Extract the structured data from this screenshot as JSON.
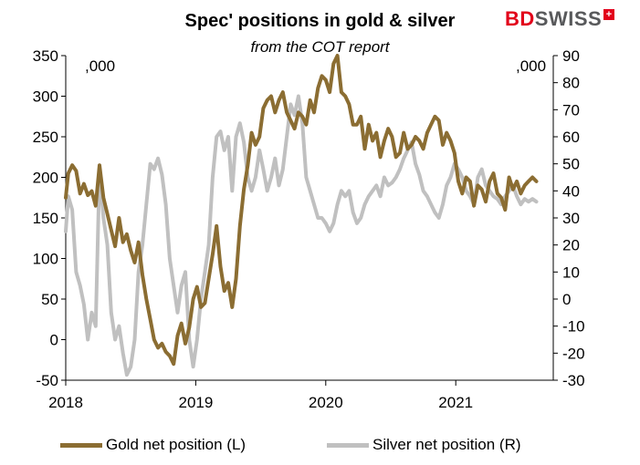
{
  "header": {
    "title": "Spec' positions in gold & silver",
    "subtitle": "from the COT report",
    "brand_bd": "BD",
    "brand_swiss": "SWISS",
    "brand_mark": "+"
  },
  "chart_data": {
    "type": "line",
    "title": "Spec' positions in gold & silver",
    "subtitle": "from the COT report",
    "left_axis_unit": ",000",
    "right_axis_unit": ",000",
    "ylim_left": [
      -50,
      350
    ],
    "ylim_right": [
      -30,
      90
    ],
    "yticks_left": [
      -50,
      0,
      50,
      100,
      150,
      200,
      250,
      300,
      350
    ],
    "yticks_right": [
      -30,
      -20,
      -10,
      0,
      10,
      20,
      30,
      40,
      50,
      60,
      70,
      80,
      90
    ],
    "xlim": [
      2018.0,
      2021.75
    ],
    "xticks": [
      2018,
      2019,
      2020,
      2021
    ],
    "xtick_labels": [
      "2018",
      "2019",
      "2020",
      "2021"
    ],
    "grid": false,
    "legend_position": "bottom",
    "series": [
      {
        "name": "Gold net position (L)",
        "axis": "left",
        "color": "#8b6d32",
        "x": [
          2018.0,
          2018.02,
          2018.05,
          2018.08,
          2018.11,
          2018.14,
          2018.17,
          2018.2,
          2018.23,
          2018.26,
          2018.29,
          2018.32,
          2018.35,
          2018.38,
          2018.41,
          2018.44,
          2018.47,
          2018.5,
          2018.53,
          2018.56,
          2018.59,
          2018.62,
          2018.65,
          2018.68,
          2018.71,
          2018.74,
          2018.77,
          2018.8,
          2018.83,
          2018.86,
          2018.89,
          2018.92,
          2018.95,
          2018.98,
          2019.01,
          2019.04,
          2019.07,
          2019.1,
          2019.13,
          2019.16,
          2019.19,
          2019.22,
          2019.25,
          2019.28,
          2019.31,
          2019.34,
          2019.37,
          2019.4,
          2019.43,
          2019.46,
          2019.49,
          2019.52,
          2019.55,
          2019.58,
          2019.61,
          2019.64,
          2019.67,
          2019.7,
          2019.73,
          2019.76,
          2019.79,
          2019.82,
          2019.85,
          2019.88,
          2019.91,
          2019.94,
          2019.97,
          2020.0,
          2020.03,
          2020.06,
          2020.09,
          2020.12,
          2020.15,
          2020.18,
          2020.21,
          2020.24,
          2020.27,
          2020.3,
          2020.33,
          2020.36,
          2020.39,
          2020.42,
          2020.45,
          2020.48,
          2020.51,
          2020.54,
          2020.57,
          2020.6,
          2020.63,
          2020.66,
          2020.69,
          2020.72,
          2020.75,
          2020.78,
          2020.81,
          2020.84,
          2020.87,
          2020.9,
          2020.93,
          2020.96,
          2020.99,
          2021.02,
          2021.05,
          2021.08,
          2021.11,
          2021.14,
          2021.17,
          2021.2,
          2021.23,
          2021.26,
          2021.29,
          2021.32,
          2021.35,
          2021.38,
          2021.41,
          2021.44,
          2021.47,
          2021.5,
          2021.53,
          2021.56,
          2021.59,
          2021.62
        ],
        "values": [
          175,
          205,
          215,
          208,
          180,
          192,
          178,
          183,
          165,
          215,
          175,
          155,
          135,
          115,
          150,
          120,
          130,
          110,
          95,
          120,
          80,
          50,
          25,
          0,
          -10,
          -5,
          -15,
          -20,
          -30,
          5,
          20,
          -5,
          15,
          50,
          65,
          40,
          45,
          75,
          105,
          140,
          90,
          60,
          70,
          40,
          75,
          140,
          185,
          215,
          255,
          240,
          250,
          285,
          295,
          300,
          280,
          295,
          305,
          280,
          270,
          260,
          280,
          275,
          265,
          295,
          280,
          310,
          325,
          320,
          305,
          340,
          350,
          305,
          300,
          290,
          265,
          265,
          275,
          235,
          265,
          245,
          255,
          225,
          245,
          260,
          250,
          225,
          230,
          255,
          235,
          240,
          250,
          245,
          235,
          255,
          265,
          275,
          270,
          240,
          255,
          245,
          230,
          195,
          180,
          200,
          195,
          165,
          190,
          185,
          170,
          195,
          205,
          180,
          175,
          160,
          200,
          185,
          195,
          180,
          190,
          195,
          200,
          195
        ]
      },
      {
        "name": "Silver net position (R)",
        "axis": "right",
        "color": "#c0c0c0",
        "x": [
          2018.0,
          2018.02,
          2018.05,
          2018.08,
          2018.11,
          2018.14,
          2018.17,
          2018.2,
          2018.23,
          2018.26,
          2018.29,
          2018.32,
          2018.35,
          2018.38,
          2018.41,
          2018.44,
          2018.47,
          2018.5,
          2018.53,
          2018.56,
          2018.59,
          2018.62,
          2018.65,
          2018.68,
          2018.71,
          2018.74,
          2018.77,
          2018.8,
          2018.83,
          2018.86,
          2018.89,
          2018.92,
          2018.95,
          2018.98,
          2019.01,
          2019.04,
          2019.07,
          2019.1,
          2019.13,
          2019.16,
          2019.19,
          2019.22,
          2019.25,
          2019.28,
          2019.31,
          2019.34,
          2019.37,
          2019.4,
          2019.43,
          2019.46,
          2019.49,
          2019.52,
          2019.55,
          2019.58,
          2019.61,
          2019.64,
          2019.67,
          2019.7,
          2019.73,
          2019.76,
          2019.79,
          2019.82,
          2019.85,
          2019.88,
          2019.91,
          2019.94,
          2019.97,
          2020.0,
          2020.03,
          2020.06,
          2020.09,
          2020.12,
          2020.15,
          2020.18,
          2020.21,
          2020.24,
          2020.27,
          2020.3,
          2020.33,
          2020.36,
          2020.39,
          2020.42,
          2020.45,
          2020.48,
          2020.51,
          2020.54,
          2020.57,
          2020.6,
          2020.63,
          2020.66,
          2020.69,
          2020.72,
          2020.75,
          2020.78,
          2020.81,
          2020.84,
          2020.87,
          2020.9,
          2020.93,
          2020.96,
          2020.99,
          2021.02,
          2021.05,
          2021.08,
          2021.11,
          2021.14,
          2021.17,
          2021.2,
          2021.23,
          2021.26,
          2021.29,
          2021.32,
          2021.35,
          2021.38,
          2021.41,
          2021.44,
          2021.47,
          2021.5,
          2021.53,
          2021.56,
          2021.59,
          2021.62
        ],
        "values": [
          25,
          38,
          33,
          10,
          5,
          -2,
          -15,
          -5,
          -10,
          48,
          30,
          20,
          -5,
          -15,
          -10,
          -20,
          -28,
          -25,
          -15,
          10,
          20,
          35,
          50,
          48,
          52,
          46,
          35,
          15,
          5,
          -5,
          5,
          10,
          -15,
          -25,
          -15,
          0,
          10,
          20,
          45,
          60,
          62,
          55,
          60,
          40,
          60,
          65,
          58,
          45,
          40,
          45,
          55,
          48,
          40,
          45,
          52,
          42,
          48,
          60,
          72,
          68,
          75,
          65,
          45,
          40,
          35,
          30,
          30,
          28,
          25,
          28,
          35,
          40,
          38,
          40,
          32,
          28,
          30,
          35,
          38,
          40,
          42,
          38,
          45,
          42,
          43,
          45,
          48,
          52,
          55,
          58,
          50,
          46,
          40,
          38,
          35,
          32,
          30,
          35,
          42,
          45,
          50,
          48,
          45,
          40,
          38,
          35,
          45,
          48,
          42,
          40,
          38,
          37,
          35,
          38,
          40,
          42,
          38,
          35,
          37,
          36,
          37,
          36
        ]
      }
    ]
  },
  "legend": {
    "items": [
      {
        "label": "Gold net position (L)",
        "color": "#8b6d32"
      },
      {
        "label": "Silver net position (R)",
        "color": "#c0c0c0"
      }
    ]
  }
}
